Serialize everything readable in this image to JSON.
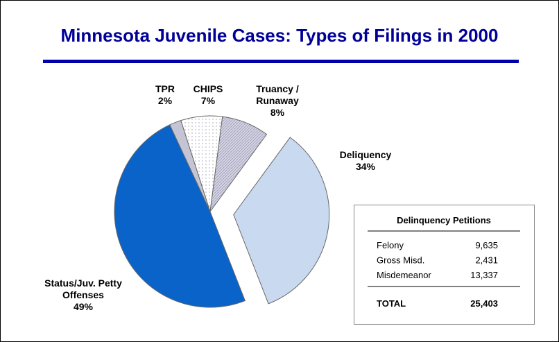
{
  "chart_data": {
    "type": "pie",
    "title": "Minnesota Juvenile Cases:  Types of Filings in 2000",
    "categories": [
      "TPR",
      "CHIPS",
      "Truancy / Runaway",
      "Deliquency",
      "Status/Juv. Petty Offenses"
    ],
    "values": [
      2,
      7,
      8,
      34,
      49
    ],
    "value_labels": [
      "2%",
      "7%",
      "8%",
      "34%",
      "49%"
    ],
    "colors": [
      "#c4c4d4",
      "#ffffff",
      "#c9c9dd",
      "#c9d9ef",
      "#0a63c9"
    ],
    "exploded": "Deliquency"
  },
  "table": {
    "title": "Delinquency Petitions",
    "rows": [
      [
        "Felony",
        "9,635"
      ],
      [
        "Gross Misd.",
        "2,431"
      ],
      [
        "Misdemeanor",
        "13,337"
      ]
    ],
    "total": [
      "TOTAL",
      "25,403"
    ]
  }
}
